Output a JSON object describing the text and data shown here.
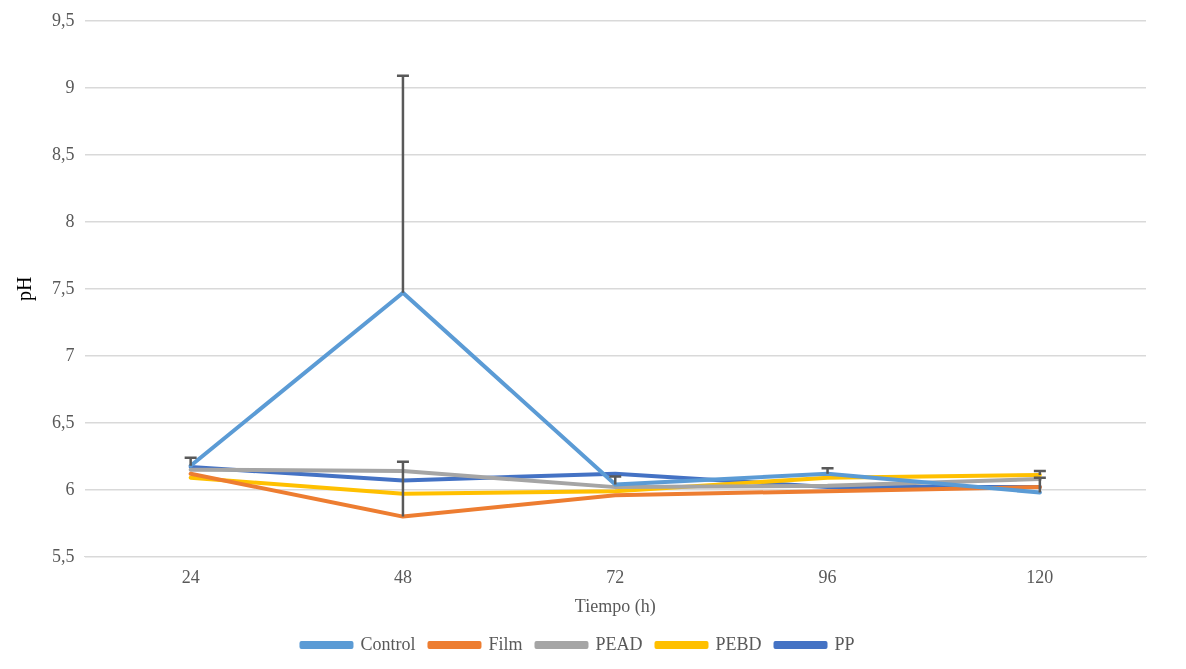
{
  "chart_data": {
    "type": "line",
    "xlabel": "Tiempo (h)",
    "ylabel": "pH",
    "categories": [
      "24",
      "48",
      "72",
      "96",
      "120"
    ],
    "series": [
      {
        "name": "Control",
        "color": "#5b9bd5",
        "values": [
          6.18,
          7.47,
          6.04,
          6.12,
          5.98
        ],
        "errors": [
          [
            6.18,
            6.24
          ],
          [
            7.47,
            9.09
          ],
          [
            6.04,
            6.1
          ],
          [
            6.12,
            6.16
          ],
          [
            5.98,
            6.09
          ]
        ]
      },
      {
        "name": "Film",
        "color": "#ed7d31",
        "values": [
          6.12,
          5.8,
          5.96,
          5.99,
          6.02
        ],
        "errors": [
          null,
          [
            5.8,
            6.21
          ],
          null,
          null,
          null
        ]
      },
      {
        "name": "PEAD",
        "color": "#a5a5a5",
        "values": [
          6.15,
          6.14,
          6.02,
          6.03,
          6.08
        ]
      },
      {
        "name": "PEBD",
        "color": "#ffc000",
        "values": [
          6.09,
          5.97,
          5.99,
          6.09,
          6.11
        ],
        "errors": [
          null,
          null,
          null,
          null,
          [
            6.11,
            6.14
          ]
        ]
      },
      {
        "name": "PP",
        "color": "#4472c4",
        "values": [
          6.17,
          6.07,
          6.12,
          6.02,
          6.02
        ]
      }
    ],
    "ylim": [
      5.5,
      9.5
    ],
    "yticks": [
      {
        "value": 5.5,
        "label": "5,5"
      },
      6,
      {
        "value": 6.5,
        "label": "6,5"
      },
      7,
      {
        "value": 7.5,
        "label": "7,5"
      },
      8,
      {
        "value": 8.5,
        "label": "8,5"
      },
      9,
      {
        "value": 9.5,
        "label": "9,5"
      }
    ],
    "grid": "y",
    "legend": "bottom",
    "marker": "none",
    "line_style": "solid"
  }
}
